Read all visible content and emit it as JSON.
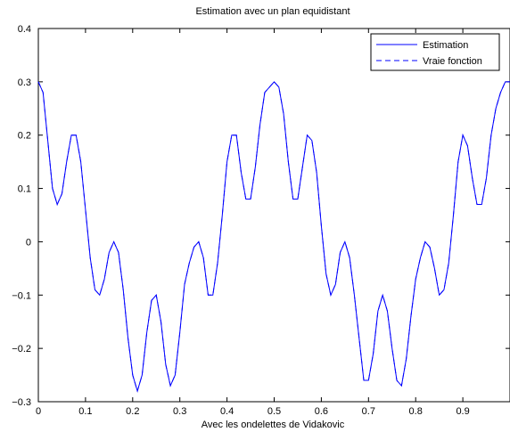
{
  "chart_data": {
    "type": "line",
    "title": "Estimation avec un plan equidistant",
    "xlabel": "Avec les ondelettes de Vidakovic",
    "ylabel": "",
    "xlim": [
      0,
      1
    ],
    "ylim": [
      -0.3,
      0.4
    ],
    "xticks": [
      0,
      0.1,
      0.2,
      0.3,
      0.4,
      0.5,
      0.6,
      0.7,
      0.8,
      0.9
    ],
    "xtick_labels": [
      "0",
      "0.1",
      "0.2",
      "0.3",
      "0.4",
      "0.5",
      "0.6",
      "0.7",
      "0.8",
      "0.9"
    ],
    "yticks": [
      -0.3,
      -0.2,
      -0.1,
      0,
      0.1,
      0.2,
      0.3,
      0.4
    ],
    "ytick_labels": [
      "−0.3",
      "−0.2",
      "−0.1",
      "0",
      "0.1",
      "0.2",
      "0.3",
      "0.4"
    ],
    "grid": false,
    "legend_position": "top-right",
    "series": [
      {
        "name": "Estimation",
        "style": "solid",
        "color": "#0000ff",
        "x": [
          0,
          0.01,
          0.02,
          0.03,
          0.04,
          0.05,
          0.06,
          0.07,
          0.08,
          0.09,
          0.1,
          0.11,
          0.12,
          0.13,
          0.14,
          0.15,
          0.16,
          0.17,
          0.18,
          0.19,
          0.2,
          0.21,
          0.22,
          0.23,
          0.24,
          0.25,
          0.26,
          0.27,
          0.28,
          0.29,
          0.3,
          0.31,
          0.32,
          0.33,
          0.34,
          0.35,
          0.36,
          0.37,
          0.38,
          0.39,
          0.4,
          0.41,
          0.42,
          0.43,
          0.44,
          0.45,
          0.46,
          0.47,
          0.48,
          0.49,
          0.5,
          0.51,
          0.52,
          0.53,
          0.54,
          0.55,
          0.56,
          0.57,
          0.58,
          0.59,
          0.6,
          0.61,
          0.62,
          0.63,
          0.64,
          0.65,
          0.66,
          0.67,
          0.68,
          0.69,
          0.7,
          0.71,
          0.72,
          0.73,
          0.74,
          0.75,
          0.76,
          0.77,
          0.78,
          0.79,
          0.8,
          0.81,
          0.82,
          0.83,
          0.84,
          0.85,
          0.86,
          0.87,
          0.88,
          0.89,
          0.9,
          0.91,
          0.92,
          0.93,
          0.94,
          0.95,
          0.96,
          0.97,
          0.98,
          0.99,
          1
        ],
        "y": [
          0.3,
          0.28,
          0.19,
          0.1,
          0.07,
          0.09,
          0.15,
          0.2,
          0.2,
          0.15,
          0.06,
          -0.03,
          -0.09,
          -0.1,
          -0.07,
          -0.02,
          0,
          -0.02,
          -0.09,
          -0.18,
          -0.25,
          -0.28,
          -0.25,
          -0.17,
          -0.11,
          -0.1,
          -0.15,
          -0.23,
          -0.27,
          -0.25,
          -0.17,
          -0.08,
          -0.04,
          -0.01,
          0,
          -0.03,
          -0.1,
          -0.1,
          -0.04,
          0.05,
          0.15,
          0.2,
          0.2,
          0.13,
          0.08,
          0.08,
          0.14,
          0.22,
          0.28,
          0.29,
          0.3,
          0.29,
          0.24,
          0.15,
          0.08,
          0.08,
          0.14,
          0.2,
          0.19,
          0.13,
          0.03,
          -0.06,
          -0.1,
          -0.08,
          -0.02,
          0,
          -0.03,
          -0.1,
          -0.18,
          -0.26,
          -0.26,
          -0.21,
          -0.13,
          -0.1,
          -0.13,
          -0.2,
          -0.26,
          -0.27,
          -0.22,
          -0.14,
          -0.07,
          -0.03,
          0,
          -0.01,
          -0.05,
          -0.1,
          -0.09,
          -0.04,
          0.05,
          0.15,
          0.2,
          0.18,
          0.12,
          0.07,
          0.07,
          0.12,
          0.2,
          0.25,
          0.28,
          0.3,
          0.3
        ]
      },
      {
        "name": "Vraie fonction",
        "style": "dashed",
        "color": "#0000ff",
        "x": [
          0,
          0.01,
          0.02,
          0.03,
          0.04,
          0.05,
          0.06,
          0.07,
          0.08,
          0.09,
          0.1,
          0.11,
          0.12,
          0.13,
          0.14,
          0.15,
          0.16,
          0.17,
          0.18,
          0.19,
          0.2,
          0.21,
          0.22,
          0.23,
          0.24,
          0.25,
          0.26,
          0.27,
          0.28,
          0.29,
          0.3,
          0.31,
          0.32,
          0.33,
          0.34,
          0.35,
          0.36,
          0.37,
          0.38,
          0.39,
          0.4,
          0.41,
          0.42,
          0.43,
          0.44,
          0.45,
          0.46,
          0.47,
          0.48,
          0.49,
          0.5,
          0.51,
          0.52,
          0.53,
          0.54,
          0.55,
          0.56,
          0.57,
          0.58,
          0.59,
          0.6,
          0.61,
          0.62,
          0.63,
          0.64,
          0.65,
          0.66,
          0.67,
          0.68,
          0.69,
          0.7,
          0.71,
          0.72,
          0.73,
          0.74,
          0.75,
          0.76,
          0.77,
          0.78,
          0.79,
          0.8,
          0.81,
          0.82,
          0.83,
          0.84,
          0.85,
          0.86,
          0.87,
          0.88,
          0.89,
          0.9,
          0.91,
          0.92,
          0.93,
          0.94,
          0.95,
          0.96,
          0.97,
          0.98,
          0.99,
          1
        ],
        "y": [
          0.3,
          0.28,
          0.19,
          0.1,
          0.07,
          0.09,
          0.15,
          0.2,
          0.2,
          0.15,
          0.06,
          -0.03,
          -0.09,
          -0.1,
          -0.07,
          -0.02,
          0,
          -0.02,
          -0.09,
          -0.18,
          -0.25,
          -0.28,
          -0.25,
          -0.17,
          -0.11,
          -0.1,
          -0.15,
          -0.23,
          -0.27,
          -0.25,
          -0.17,
          -0.08,
          -0.04,
          -0.01,
          0,
          -0.03,
          -0.1,
          -0.1,
          -0.04,
          0.05,
          0.15,
          0.2,
          0.2,
          0.13,
          0.08,
          0.08,
          0.14,
          0.22,
          0.28,
          0.29,
          0.3,
          0.29,
          0.24,
          0.15,
          0.08,
          0.08,
          0.14,
          0.2,
          0.19,
          0.13,
          0.03,
          -0.06,
          -0.1,
          -0.08,
          -0.02,
          0,
          -0.03,
          -0.1,
          -0.18,
          -0.26,
          -0.26,
          -0.21,
          -0.13,
          -0.1,
          -0.13,
          -0.2,
          -0.26,
          -0.27,
          -0.22,
          -0.14,
          -0.07,
          -0.03,
          0,
          -0.01,
          -0.05,
          -0.1,
          -0.09,
          -0.04,
          0.05,
          0.15,
          0.2,
          0.18,
          0.12,
          0.07,
          0.07,
          0.12,
          0.2,
          0.25,
          0.28,
          0.3,
          0.3
        ]
      }
    ]
  }
}
